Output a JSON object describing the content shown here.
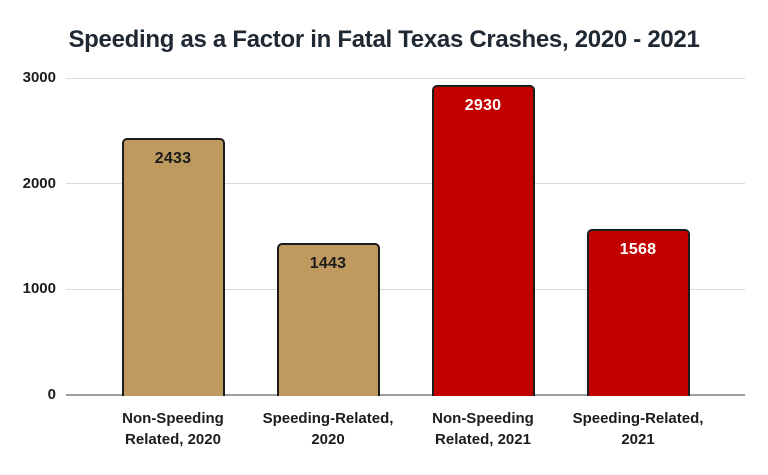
{
  "chart_data": {
    "type": "bar",
    "title": "Speeding as a Factor in Fatal Texas Crashes, 2020 - 2021",
    "categories": [
      "Non-Speeding Related, 2020",
      "Speeding-Related, 2020",
      "Non-Speeding Related, 2021",
      "Speeding-Related, 2021"
    ],
    "category_lines": [
      [
        "Non-Speeding",
        "Related, 2020"
      ],
      [
        "Speeding-Related,",
        "2020"
      ],
      [
        "Non-Speeding",
        "Related, 2021"
      ],
      [
        "Speeding-Related,",
        "2021"
      ]
    ],
    "values": [
      2433,
      1443,
      2930,
      1568
    ],
    "value_labels": [
      "2433",
      "1443",
      "2930",
      "1568"
    ],
    "bar_colors": [
      "#BF9A5F",
      "#BF9A5F",
      "#C30000",
      "#C30000"
    ],
    "value_label_colors": [
      "#1b1b1b",
      "#1b1b1b",
      "#ffffff",
      "#ffffff"
    ],
    "bar_border_color": "#1c1c1c",
    "xlabel": "",
    "ylabel": "",
    "y_ticks": [
      0,
      1000,
      2000,
      3000
    ],
    "y_tick_labels": [
      "0",
      "1000",
      "2000",
      "3000"
    ],
    "ylim": [
      0,
      3000
    ],
    "grid": true,
    "legend": "none",
    "gridline_color": "#d9d9d9",
    "axis_line_color": "#9e9e9e",
    "title_color": "#1f2933",
    "background_color": "#ffffff"
  }
}
